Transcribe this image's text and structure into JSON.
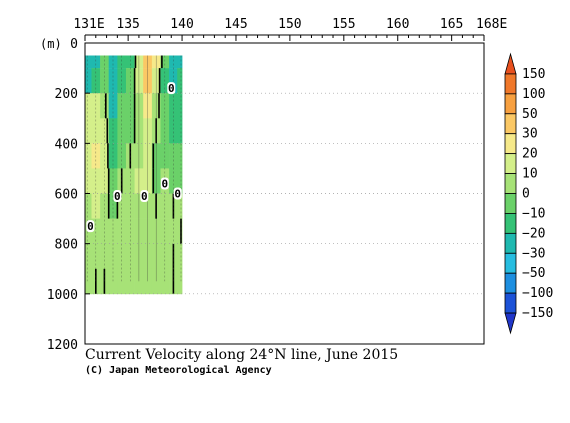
{
  "chart_data": {
    "type": "heatmap",
    "title": "Current Velocity along 24°N line, June 2015",
    "credit": "(C) Japan Meteorological Agency",
    "ylabel": "(m)",
    "x_tick_labels": [
      "131E",
      "135",
      "140",
      "145",
      "150",
      "155",
      "160",
      "165",
      "168E"
    ],
    "x_tick_values": [
      131,
      135,
      140,
      145,
      150,
      155,
      160,
      165,
      168
    ],
    "xlim": [
      131,
      168
    ],
    "y_tick_labels": [
      "0",
      "200",
      "400",
      "600",
      "800",
      "1000",
      "1200"
    ],
    "y_tick_values": [
      0,
      200,
      400,
      600,
      800,
      1000,
      1200
    ],
    "ylim": [
      0,
      1200
    ],
    "y_inverted": true,
    "grid": true,
    "data_extent": {
      "lon": [
        131,
        140
      ],
      "depth": [
        50,
        1200
      ]
    },
    "contour_labels": [
      {
        "text": "0",
        "lon": 139.0,
        "depth": 180
      },
      {
        "text": "0",
        "lon": 134.0,
        "depth": 610
      },
      {
        "text": "0",
        "lon": 136.5,
        "depth": 610
      },
      {
        "text": "0",
        "lon": 138.4,
        "depth": 560
      },
      {
        "text": "0",
        "lon": 139.6,
        "depth": 600
      },
      {
        "text": "0",
        "lon": 131.5,
        "depth": 730
      }
    ],
    "colorbar": {
      "labels": [
        "150",
        "100",
        "50",
        "30",
        "20",
        "10",
        "0",
        "−10",
        "−20",
        "−30",
        "−50",
        "−100",
        "−150"
      ],
      "colors": [
        "#e8501e",
        "#f0782a",
        "#f7a040",
        "#fbc865",
        "#f6e98a",
        "#d4ef8a",
        "#a7e277",
        "#6bd169",
        "#35c276",
        "#1fb9b0",
        "#27bde0",
        "#1d8fe0",
        "#1c52d7",
        "#2036c9"
      ]
    },
    "field": {
      "description_free": false,
      "columns": [
        {
          "lon": 131.2,
          "values": [
            -25,
            -25,
            10,
            10,
            15,
            15,
            5,
            5,
            5,
            5
          ]
        },
        {
          "lon": 132.0,
          "values": [
            -25,
            -15,
            10,
            15,
            20,
            15,
            10,
            5,
            5,
            0
          ]
        },
        {
          "lon": 132.8,
          "values": [
            -10,
            -5,
            5,
            10,
            10,
            10,
            5,
            5,
            5,
            0
          ]
        },
        {
          "lon": 133.6,
          "values": [
            -30,
            -30,
            -25,
            -20,
            -15,
            -10,
            -5,
            5,
            5,
            5
          ]
        },
        {
          "lon": 134.4,
          "values": [
            -20,
            -20,
            -10,
            -5,
            -5,
            0,
            5,
            5,
            5,
            5
          ]
        },
        {
          "lon": 135.2,
          "values": [
            -15,
            -10,
            -5,
            -5,
            0,
            5,
            5,
            5,
            5,
            5
          ]
        },
        {
          "lon": 136.0,
          "values": [
            10,
            10,
            5,
            5,
            5,
            10,
            5,
            5,
            5,
            5
          ]
        },
        {
          "lon": 136.8,
          "values": [
            40,
            30,
            20,
            15,
            10,
            10,
            5,
            5,
            5,
            5
          ]
        },
        {
          "lon": 137.6,
          "values": [
            20,
            10,
            5,
            0,
            -5,
            -5,
            0,
            5,
            5,
            5
          ]
        },
        {
          "lon": 138.4,
          "values": [
            -10,
            -15,
            -10,
            -10,
            -5,
            0,
            5,
            5,
            5,
            5
          ]
        },
        {
          "lon": 139.2,
          "values": [
            -30,
            -25,
            -20,
            -15,
            -10,
            -5,
            0,
            5,
            0,
            0
          ]
        },
        {
          "lon": 139.9,
          "values": [
            -25,
            -20,
            -20,
            -15,
            -10,
            -5,
            0,
            0,
            0,
            0
          ]
        }
      ],
      "depths": [
        50,
        150,
        250,
        350,
        450,
        550,
        650,
        750,
        850,
        950
      ]
    }
  }
}
